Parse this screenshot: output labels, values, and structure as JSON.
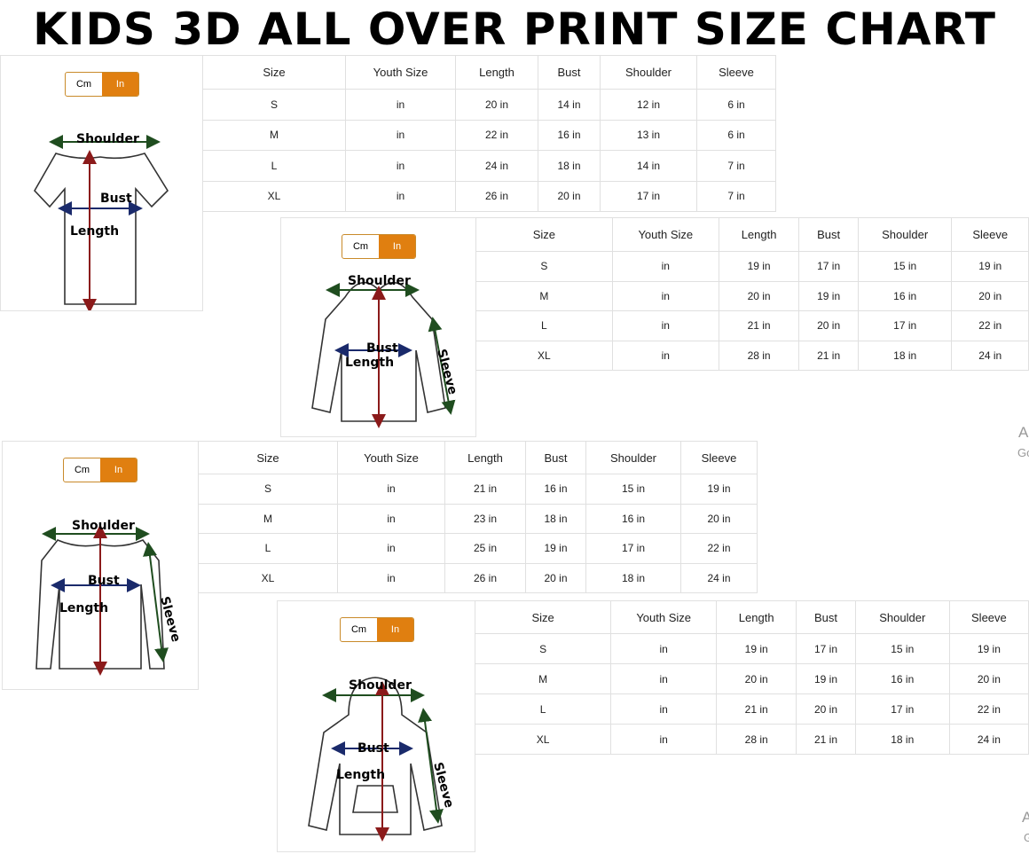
{
  "title": "KIDS 3D ALL OVER PRINT SIZE CHART",
  "panels": [
    {
      "unit_toggle": [
        "Cm",
        "In"
      ],
      "garment_labels": {
        "shoulder": "Shoulder",
        "bust": "Bust",
        "length": "Length"
      },
      "table": {
        "header": [
          "Size",
          "Youth Size",
          "Length",
          "Bust",
          "Shoulder",
          "Sleeve"
        ],
        "rows": [
          [
            "S",
            "in",
            "20 in",
            "14 in",
            "12 in",
            "6 in"
          ],
          [
            "M",
            "in",
            "22 in",
            "16 in",
            "13 in",
            "6 in"
          ],
          [
            "L",
            "in",
            "24 in",
            "18 in",
            "14 in",
            "7 in"
          ],
          [
            "XL",
            "in",
            "26 in",
            "20 in",
            "17 in",
            "7 in"
          ]
        ]
      }
    },
    {
      "unit_toggle": [
        "Cm",
        "In"
      ],
      "garment_labels": {
        "shoulder": "Shoulder",
        "bust": "Bust",
        "length": "Length",
        "sleeve": "Sleeve"
      },
      "table": {
        "header": [
          "Size",
          "Youth Size",
          "Length",
          "Bust",
          "Shoulder",
          "Sleeve"
        ],
        "rows": [
          [
            "S",
            "in",
            "19 in",
            "17 in",
            "15 in",
            "19 in"
          ],
          [
            "M",
            "in",
            "20 in",
            "19 in",
            "16 in",
            "20 in"
          ],
          [
            "L",
            "in",
            "21 in",
            "20 in",
            "17 in",
            "22 in"
          ],
          [
            "XL",
            "in",
            "28 in",
            "21 in",
            "18 in",
            "24 in"
          ]
        ]
      }
    },
    {
      "unit_toggle": [
        "Cm",
        "In"
      ],
      "garment_labels": {
        "shoulder": "Shoulder",
        "bust": "Bust",
        "length": "Length",
        "sleeve": "Sleeve"
      },
      "table": {
        "header": [
          "Size",
          "Youth Size",
          "Length",
          "Bust",
          "Shoulder",
          "Sleeve"
        ],
        "rows": [
          [
            "S",
            "in",
            "21 in",
            "16 in",
            "15 in",
            "19 in"
          ],
          [
            "M",
            "in",
            "23 in",
            "18 in",
            "16 in",
            "20 in"
          ],
          [
            "L",
            "in",
            "25 in",
            "19 in",
            "17 in",
            "22 in"
          ],
          [
            "XL",
            "in",
            "26 in",
            "20 in",
            "18 in",
            "24 in"
          ]
        ]
      }
    },
    {
      "unit_toggle": [
        "Cm",
        "In"
      ],
      "garment_labels": {
        "shoulder": "Shoulder",
        "bust": "Bust",
        "length": "Length",
        "sleeve": "Sleeve"
      },
      "table": {
        "header": [
          "Size",
          "Youth Size",
          "Length",
          "Bust",
          "Shoulder",
          "Sleeve"
        ],
        "rows": [
          [
            "S",
            "in",
            "19 in",
            "17 in",
            "15 in",
            "19 in"
          ],
          [
            "M",
            "in",
            "20 in",
            "19 in",
            "16 in",
            "20 in"
          ],
          [
            "L",
            "in",
            "21 in",
            "20 in",
            "17 in",
            "22 in"
          ],
          [
            "XL",
            "in",
            "28 in",
            "21 in",
            "18 in",
            "24 in"
          ]
        ]
      }
    }
  ],
  "watermarks": [
    "A",
    "Go",
    "A",
    "G"
  ]
}
